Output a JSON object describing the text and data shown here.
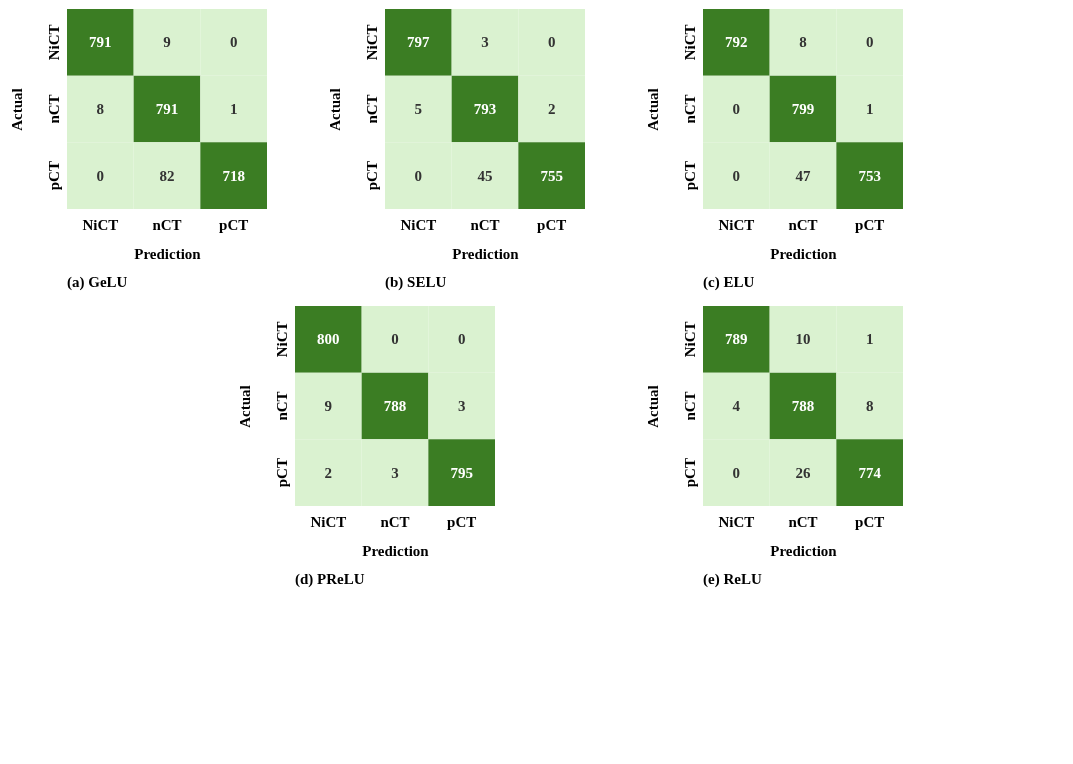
{
  "chart_data": [
    {
      "type": "heatmap",
      "title": "(a) GeLU",
      "xlabel": "Prediction",
      "ylabel": "Actual",
      "categories": [
        "NiCT",
        "nCT",
        "pCT"
      ],
      "y_categories": [
        "NiCT",
        "nCT",
        "pCT"
      ],
      "colors": [
        "#daf2d0",
        "#3b7d23"
      ],
      "data_labels": true,
      "cells": [
        [
          791,
          9,
          0
        ],
        [
          8,
          791,
          1
        ],
        [
          0,
          82,
          718
        ]
      ]
    },
    {
      "type": "heatmap",
      "title": "(b) SELU",
      "xlabel": "Prediction",
      "ylabel": "Actual",
      "categories": [
        "NiCT",
        "nCT",
        "pCT"
      ],
      "y_categories": [
        "NiCT",
        "nCT",
        "pCT"
      ],
      "colors": [
        "#daf2d0",
        "#3b7d23"
      ],
      "data_labels": true,
      "cells": [
        [
          797,
          3,
          0
        ],
        [
          5,
          793,
          2
        ],
        [
          0,
          45,
          755
        ]
      ]
    },
    {
      "type": "heatmap",
      "title": "(c) ELU",
      "xlabel": "Prediction",
      "ylabel": "Actual",
      "categories": [
        "NiCT",
        "nCT",
        "pCT"
      ],
      "y_categories": [
        "NiCT",
        "nCT",
        "pCT"
      ],
      "colors": [
        "#daf2d0",
        "#3b7d23"
      ],
      "data_labels": true,
      "cells": [
        [
          792,
          8,
          0
        ],
        [
          0,
          799,
          1
        ],
        [
          0,
          47,
          753
        ]
      ]
    },
    {
      "type": "heatmap",
      "title": "(d) PReLU",
      "xlabel": "Prediction",
      "ylabel": "Actual",
      "categories": [
        "NiCT",
        "nCT",
        "pCT"
      ],
      "y_categories": [
        "NiCT",
        "nCT",
        "pCT"
      ],
      "colors": [
        "#daf2d0",
        "#3b7d23"
      ],
      "data_labels": true,
      "cells": [
        [
          800,
          0,
          0
        ],
        [
          9,
          788,
          3
        ],
        [
          2,
          3,
          795
        ]
      ]
    },
    {
      "type": "heatmap",
      "title": "(e) ReLU",
      "xlabel": "Prediction",
      "ylabel": "Actual",
      "categories": [
        "NiCT",
        "nCT",
        "pCT"
      ],
      "y_categories": [
        "NiCT",
        "nCT",
        "pCT"
      ],
      "colors": [
        "#daf2d0",
        "#3b7d23"
      ],
      "data_labels": true,
      "cells": [
        [
          789,
          10,
          1
        ],
        [
          4,
          788,
          8
        ],
        [
          0,
          26,
          774
        ]
      ]
    }
  ]
}
